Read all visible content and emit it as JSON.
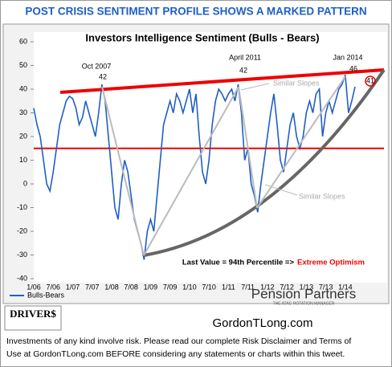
{
  "header": "POST CRISIS SENTIMENT PROFILE SHOWS A MARKED PATTERN",
  "chart_data": {
    "type": "line",
    "title": "Investors Intelligence Sentiment (Bulls - Bears)",
    "categories": [
      "1/06",
      null,
      null,
      null,
      null,
      null,
      "7/06",
      null,
      null,
      null,
      null,
      null,
      "1/07",
      null,
      null,
      null,
      null,
      null,
      "7/07",
      null,
      null,
      null,
      null,
      null,
      "1/08",
      null,
      null,
      null,
      null,
      null,
      "7/08",
      null,
      null,
      null,
      null,
      null,
      "1/09",
      null,
      null,
      null,
      null,
      null,
      "7/09",
      null,
      null,
      null,
      null,
      null,
      "1/10",
      null,
      null,
      null,
      null,
      null,
      "7/10",
      null,
      null,
      null,
      null,
      null,
      "1/11",
      null,
      null,
      null,
      null,
      null,
      "7/11",
      null,
      null,
      null,
      null,
      null,
      "1/12",
      null,
      null,
      null,
      null,
      null,
      "7/12",
      null,
      null,
      null,
      null,
      null,
      "1/13",
      null,
      null,
      null,
      null,
      null,
      "7/13",
      null,
      null,
      null,
      null,
      null,
      "1/14",
      null,
      null,
      null
    ],
    "series": [
      {
        "name": "Bulls-Bears",
        "color": "#1f5fc4",
        "values": [
          32,
          25,
          20,
          10,
          0,
          -3,
          5,
          15,
          25,
          30,
          35,
          37,
          36,
          32,
          25,
          28,
          35,
          30,
          25,
          20,
          30,
          42,
          35,
          20,
          5,
          -10,
          -15,
          0,
          10,
          5,
          -5,
          -15,
          -20,
          -25,
          -32,
          -20,
          -15,
          -20,
          -5,
          10,
          25,
          30,
          35,
          30,
          38,
          35,
          30,
          35,
          40,
          30,
          38,
          20,
          5,
          0,
          10,
          25,
          35,
          40,
          38,
          35,
          38,
          40,
          35,
          42,
          30,
          10,
          15,
          0,
          -5,
          -12,
          0,
          10,
          20,
          30,
          38,
          25,
          10,
          5,
          15,
          25,
          30,
          20,
          15,
          20,
          30,
          35,
          30,
          38,
          40,
          20,
          30,
          35,
          30,
          35,
          40,
          42,
          46,
          30,
          35,
          41
        ]
      }
    ],
    "ylim": [
      -40,
      60
    ],
    "yticks": [
      -40,
      -30,
      -20,
      -10,
      0,
      10,
      20,
      30,
      40,
      50,
      60
    ],
    "reference_line": 15,
    "annotations": [
      "Oct 2007",
      "42",
      "April 2011",
      "42",
      "Jan 2014",
      "46",
      "41",
      "Similar Slopes",
      "Similar Slopes"
    ],
    "footnote_label": "Last Value = 94th Percentile =>",
    "footnote_highlight": "Extreme Optimism"
  },
  "brand": "Pension Partners",
  "brand_tagline": "THE ATAC ROTATION MANAGER",
  "logo": "DRIVER$",
  "site": "GordonTLong.com",
  "disclaimer": [
    "Investments of any kind involve risk. Please read our complete Risk Disclaimer and Terms of",
    "Use at GordonTLong.com  BEFORE considering any statements or charts within this tweet."
  ]
}
